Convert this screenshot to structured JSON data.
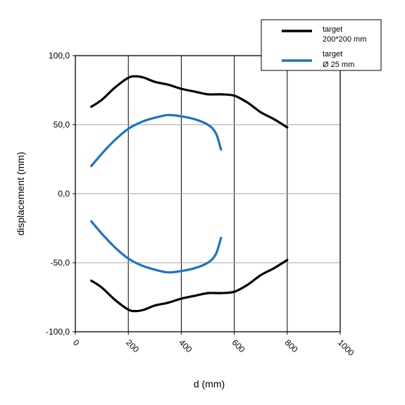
{
  "chart_data": {
    "type": "line",
    "xlabel": "d (mm)",
    "ylabel": "displacement (mm)",
    "xlim": [
      0,
      1000
    ],
    "ylim": [
      -100,
      100
    ],
    "x_ticks": [
      "0",
      "200",
      "400",
      "600",
      "800",
      "1000"
    ],
    "y_ticks": [
      "100,0",
      "50,0",
      "0,0",
      "-50,0",
      "-100,0"
    ],
    "grid": "vertical lines at 200, 400, 600, 800; horizontal lines at -50, 0, 50",
    "legend_position": "top-right",
    "series": [
      {
        "legend_line1": "target",
        "legend_line2": "200*200 mm",
        "color": "#000000",
        "x": [
          60,
          100,
          150,
          200,
          230,
          260,
          300,
          350,
          400,
          450,
          500,
          550,
          600,
          650,
          700,
          750,
          800
        ],
        "upper": [
          63,
          68,
          77,
          84,
          85,
          84,
          81,
          79,
          76,
          74,
          72,
          72,
          71,
          66,
          59,
          54,
          48
        ],
        "lower": [
          -63,
          -68,
          -77,
          -84,
          -85,
          -84,
          -81,
          -79,
          -76,
          -74,
          -72,
          -72,
          -71,
          -66,
          -59,
          -54,
          -48
        ]
      },
      {
        "legend_line1": "target",
        "legend_line2": "Ø 25 mm",
        "color": "#1d74bf",
        "x": [
          60,
          100,
          150,
          200,
          250,
          300,
          350,
          400,
          450,
          500,
          530,
          550
        ],
        "upper": [
          20,
          29,
          39,
          47,
          52,
          55,
          57,
          56,
          54,
          50,
          44,
          32
        ],
        "lower": [
          -20,
          -29,
          -39,
          -47,
          -52,
          -55,
          -57,
          -56,
          -54,
          -50,
          -44,
          -32
        ]
      }
    ]
  }
}
